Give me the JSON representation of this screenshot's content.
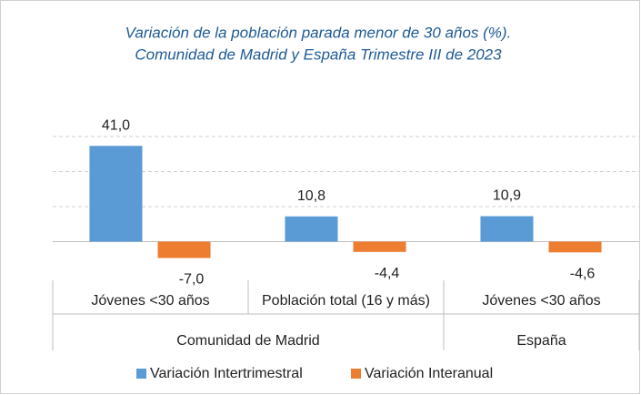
{
  "chart_data": {
    "type": "bar",
    "title": [
      "Variación de la población parada menor de 30 años (%).",
      "Comunidad de Madrid y España Trimestre III de 2023"
    ],
    "groups": [
      {
        "name": "Comunidad de Madrid",
        "categories": [
          "Jóvenes <30 años",
          "Población total (16 y más)"
        ]
      },
      {
        "name": "España",
        "categories": [
          "Jóvenes <30 años"
        ]
      }
    ],
    "series": [
      {
        "name": "Variación Intertrimestral",
        "color": "#5b9bd5",
        "values": [
          41.0,
          10.8,
          10.9
        ],
        "value_labels": [
          "41,0",
          "10,8",
          "10,9"
        ]
      },
      {
        "name": "Variación Interanual",
        "color": "#ed7d31",
        "values": [
          -7.0,
          -4.4,
          -4.6
        ],
        "value_labels": [
          "-7,0",
          "-4,4",
          "-4,6"
        ]
      }
    ],
    "ylim": [
      -15,
      45
    ],
    "yticks": [
      -15,
      0,
      15,
      30,
      45
    ],
    "grid": true,
    "legend": "bottom"
  }
}
